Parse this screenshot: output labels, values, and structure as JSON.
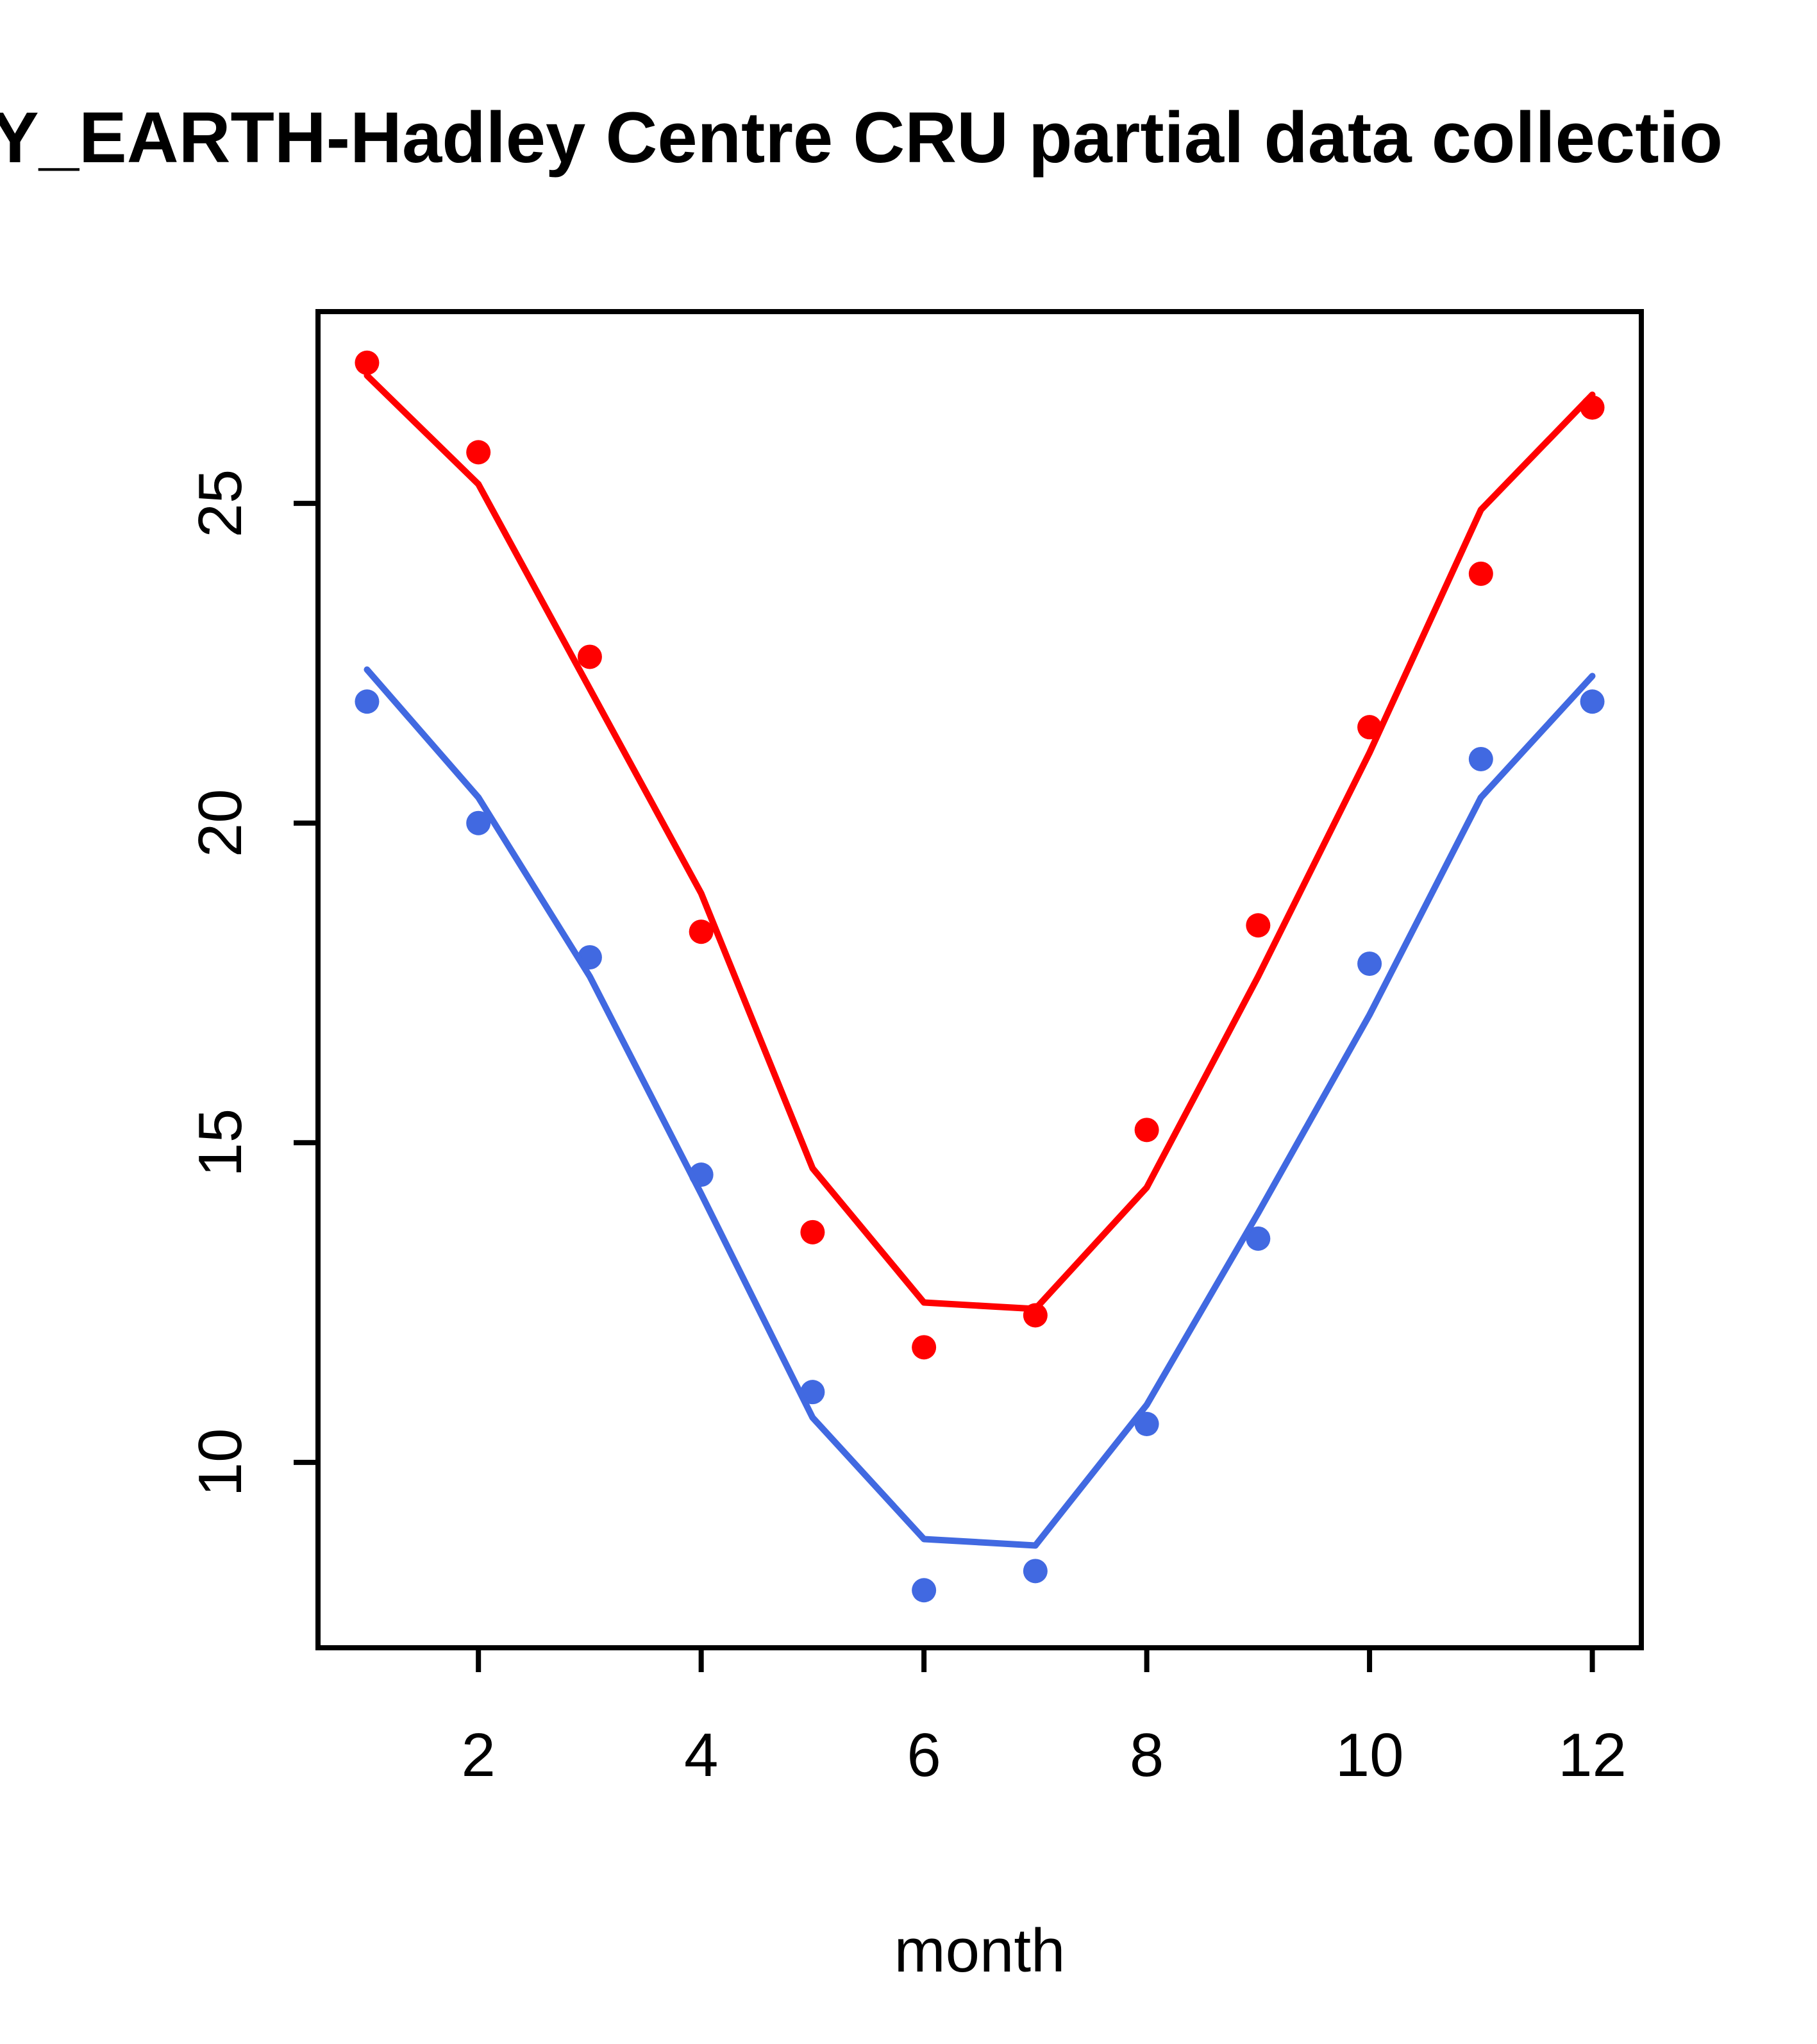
{
  "chart_data": {
    "type": "line",
    "title": "Y_EARTH-Hadley Centre  CRU partial data collectio",
    "xlabel": "month",
    "ylabel": "",
    "x": [
      1,
      2,
      3,
      4,
      5,
      6,
      7,
      8,
      9,
      10,
      11,
      12
    ],
    "xlim": [
      0.56,
      12.44
    ],
    "ylim": [
      7.1,
      28.0
    ],
    "x_ticks": [
      2,
      4,
      6,
      8,
      10,
      12
    ],
    "y_ticks": [
      10,
      15,
      20,
      25
    ],
    "grid": false,
    "legend": "none",
    "colors": {
      "red": "#FF0000",
      "blue": "#4169E1",
      "axis": "#000000",
      "background": "#FFFFFF"
    },
    "series": [
      {
        "name": "red-observed-points",
        "style": "points",
        "color": "#FF0000",
        "values": [
          27.2,
          25.8,
          22.6,
          18.3,
          13.6,
          11.8,
          12.3,
          15.2,
          18.4,
          21.5,
          23.9,
          26.5
        ]
      },
      {
        "name": "red-fitted-line",
        "style": "line",
        "color": "#FF0000",
        "values": [
          27.0,
          25.3,
          22.1,
          18.9,
          14.6,
          12.5,
          12.4,
          14.3,
          17.6,
          21.1,
          24.9,
          26.7
        ]
      },
      {
        "name": "blue-observed-points",
        "style": "points",
        "color": "#4169E1",
        "values": [
          21.9,
          20.0,
          17.9,
          14.5,
          11.1,
          8.0,
          8.3,
          10.6,
          13.5,
          17.8,
          21.0,
          21.9
        ]
      },
      {
        "name": "blue-fitted-line",
        "style": "line",
        "color": "#4169E1",
        "values": [
          22.4,
          20.4,
          17.6,
          14.2,
          10.7,
          8.8,
          8.7,
          10.9,
          13.9,
          17.0,
          20.4,
          22.3
        ]
      }
    ]
  }
}
